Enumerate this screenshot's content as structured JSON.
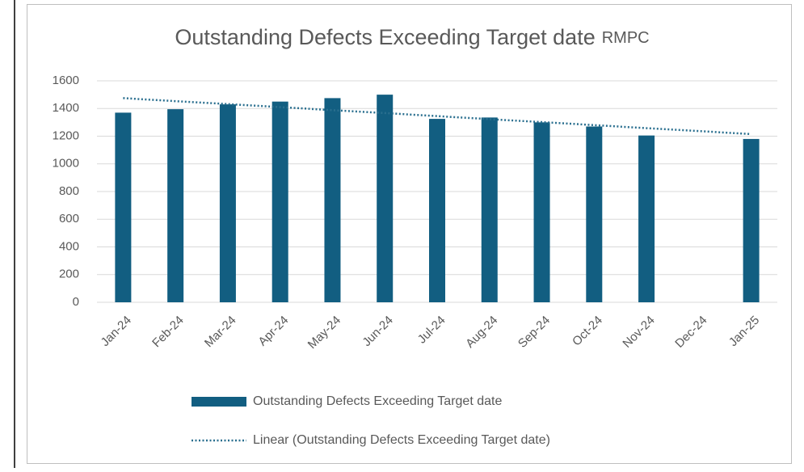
{
  "chart_data": {
    "type": "bar",
    "title": "Outstanding Defects Exceeding Target date",
    "subtitle": "RMPC",
    "categories": [
      "Jan-24",
      "Feb-24",
      "Mar-24",
      "Apr-24",
      "May-24",
      "Jun-24",
      "Jul-24",
      "Aug-24",
      "Sep-24",
      "Oct-24",
      "Nov-24",
      "Dec-24",
      "Jan-25"
    ],
    "series": [
      {
        "name": "Outstanding Defects Exceeding Target date",
        "type": "bar",
        "color": "#125e81",
        "values": [
          1370,
          1395,
          1430,
          1450,
          1475,
          1500,
          1325,
          1335,
          1300,
          1270,
          1205,
          null,
          1180
        ]
      },
      {
        "name": "Linear (Outstanding Defects Exceeding Target date)",
        "type": "line",
        "color": "#2a6f8f",
        "values": [
          1475,
          1453,
          1432,
          1410,
          1388,
          1367,
          1345,
          1323,
          1302,
          1280,
          1258,
          1237,
          1215
        ]
      }
    ],
    "ylim": [
      0,
      1600
    ],
    "yticks": [
      0,
      200,
      400,
      600,
      800,
      1000,
      1200,
      1400,
      1600
    ],
    "grid": true,
    "legend": "bottom"
  }
}
